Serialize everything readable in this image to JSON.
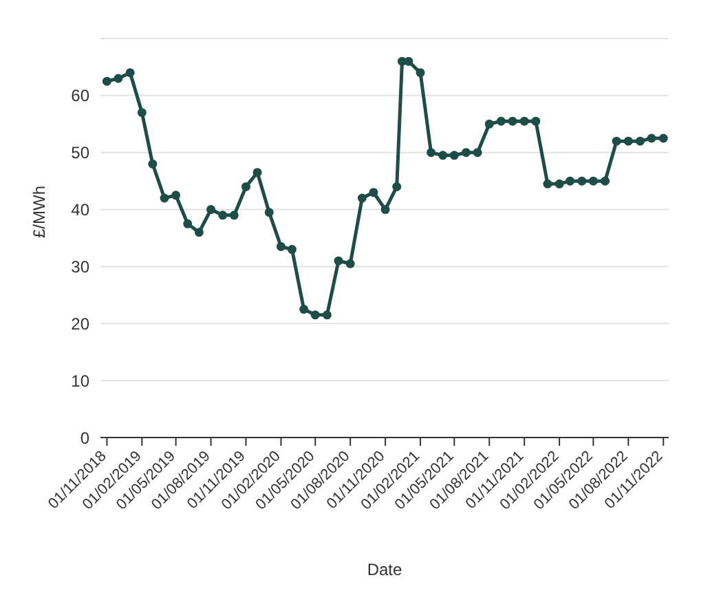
{
  "chart_data": {
    "type": "line",
    "xlabel": "Date",
    "ylabel": "£/MWh",
    "x": [
      "2018-11-01",
      "2018-12-01",
      "2019-01-01",
      "2019-02-01",
      "2019-03-01",
      "2019-04-01",
      "2019-05-01",
      "2019-06-01",
      "2019-07-01",
      "2019-08-01",
      "2019-09-01",
      "2019-10-01",
      "2019-11-01",
      "2019-12-01",
      "2020-01-01",
      "2020-02-01",
      "2020-03-01",
      "2020-04-01",
      "2020-05-01",
      "2020-06-01",
      "2020-07-01",
      "2020-08-01",
      "2020-09-01",
      "2020-10-01",
      "2020-11-01",
      "2020-12-01",
      "2020-12-15",
      "2021-01-01",
      "2021-02-01",
      "2021-03-01",
      "2021-04-01",
      "2021-05-01",
      "2021-06-01",
      "2021-07-01",
      "2021-08-01",
      "2021-09-01",
      "2021-10-01",
      "2021-11-01",
      "2021-12-01",
      "2022-01-01",
      "2022-02-01",
      "2022-03-01",
      "2022-04-01",
      "2022-05-01",
      "2022-06-01",
      "2022-07-01",
      "2022-08-01",
      "2022-09-01",
      "2022-10-01",
      "2022-11-01"
    ],
    "series": [
      {
        "color": "#1e4d47",
        "values": [
          62.5,
          63,
          64,
          57,
          48,
          42,
          42.5,
          37.5,
          36,
          40,
          39,
          39,
          44,
          46.5,
          39.5,
          33.5,
          33,
          22.5,
          21.5,
          21.5,
          31,
          30.5,
          42,
          43,
          40,
          44,
          66,
          66,
          64,
          50,
          49.5,
          49.5,
          50,
          50,
          55,
          55.5,
          55.5,
          55.5,
          55.5,
          44.5,
          44.5,
          45,
          45,
          45,
          45,
          52,
          52,
          52,
          52.5,
          52.5
        ]
      }
    ],
    "xlim": [
      "2018-10-15",
      "2022-11-15"
    ],
    "xticks": [
      {
        "value": "2018-11-01",
        "label": "01/11/2018"
      },
      {
        "value": "2019-02-01",
        "label": "01/02/2019"
      },
      {
        "value": "2019-05-01",
        "label": "01/05/2019"
      },
      {
        "value": "2019-08-01",
        "label": "01/08/2019"
      },
      {
        "value": "2019-11-01",
        "label": "01/11/2019"
      },
      {
        "value": "2020-02-01",
        "label": "01/02/2020"
      },
      {
        "value": "2020-05-01",
        "label": "01/05/2020"
      },
      {
        "value": "2020-08-01",
        "label": "01/08/2020"
      },
      {
        "value": "2020-11-01",
        "label": "01/11/2020"
      },
      {
        "value": "2021-02-01",
        "label": "01/02/2021"
      },
      {
        "value": "2021-05-01",
        "label": "01/05/2021"
      },
      {
        "value": "2021-08-01",
        "label": "01/08/2021"
      },
      {
        "value": "2021-11-01",
        "label": "01/11/2021"
      },
      {
        "value": "2022-02-01",
        "label": "01/02/2022"
      },
      {
        "value": "2022-05-01",
        "label": "01/05/2022"
      },
      {
        "value": "2022-08-01",
        "label": "01/08/2022"
      },
      {
        "value": "2022-11-01",
        "label": "01/11/2022"
      }
    ],
    "ylim": [
      0,
      70
    ],
    "yticks": [
      0,
      10,
      20,
      30,
      40,
      50,
      60
    ],
    "grid": "y",
    "marker": "circle",
    "line_style": "solid"
  }
}
